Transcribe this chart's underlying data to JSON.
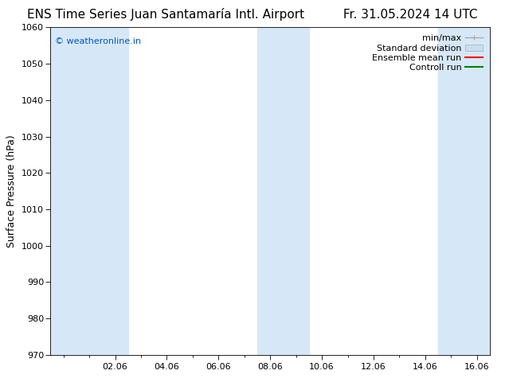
{
  "title": "ENS Time Series Juan Santamaría Intl. Airport",
  "title_date": "Fr. 31.05.2024 14 UTC",
  "ylabel": "Surface Pressure (hPa)",
  "ylim": [
    970,
    1060
  ],
  "yticks": [
    970,
    980,
    990,
    1000,
    1010,
    1020,
    1030,
    1040,
    1050,
    1060
  ],
  "xtick_labels": [
    "02.06",
    "04.06",
    "06.06",
    "08.06",
    "10.06",
    "12.06",
    "14.06",
    "16.06"
  ],
  "xtick_positions": [
    2,
    4,
    6,
    8,
    10,
    12,
    14,
    16
  ],
  "watermark": "© weatheronline.in",
  "watermark_color": "#0055cc",
  "background_color": "#ffffff",
  "plot_bg_color": "#ffffff",
  "shaded_band_color": "#d6e8f7",
  "band_ranges": [
    [
      -0.5,
      2.5
    ],
    [
      7.5,
      9.5
    ],
    [
      14.5,
      16.5
    ]
  ],
  "x_min": -0.5,
  "x_max": 16.5,
  "legend_labels": [
    "min/max",
    "Standard deviation",
    "Ensemble mean run",
    "Controll run"
  ],
  "legend_colors": [
    "#aaaaaa",
    "#c8dff0",
    "#ff0000",
    "#008000"
  ],
  "font_size_title": 11,
  "font_size_axis": 9,
  "font_size_ticks": 8,
  "font_size_legend": 8,
  "font_size_watermark": 8
}
